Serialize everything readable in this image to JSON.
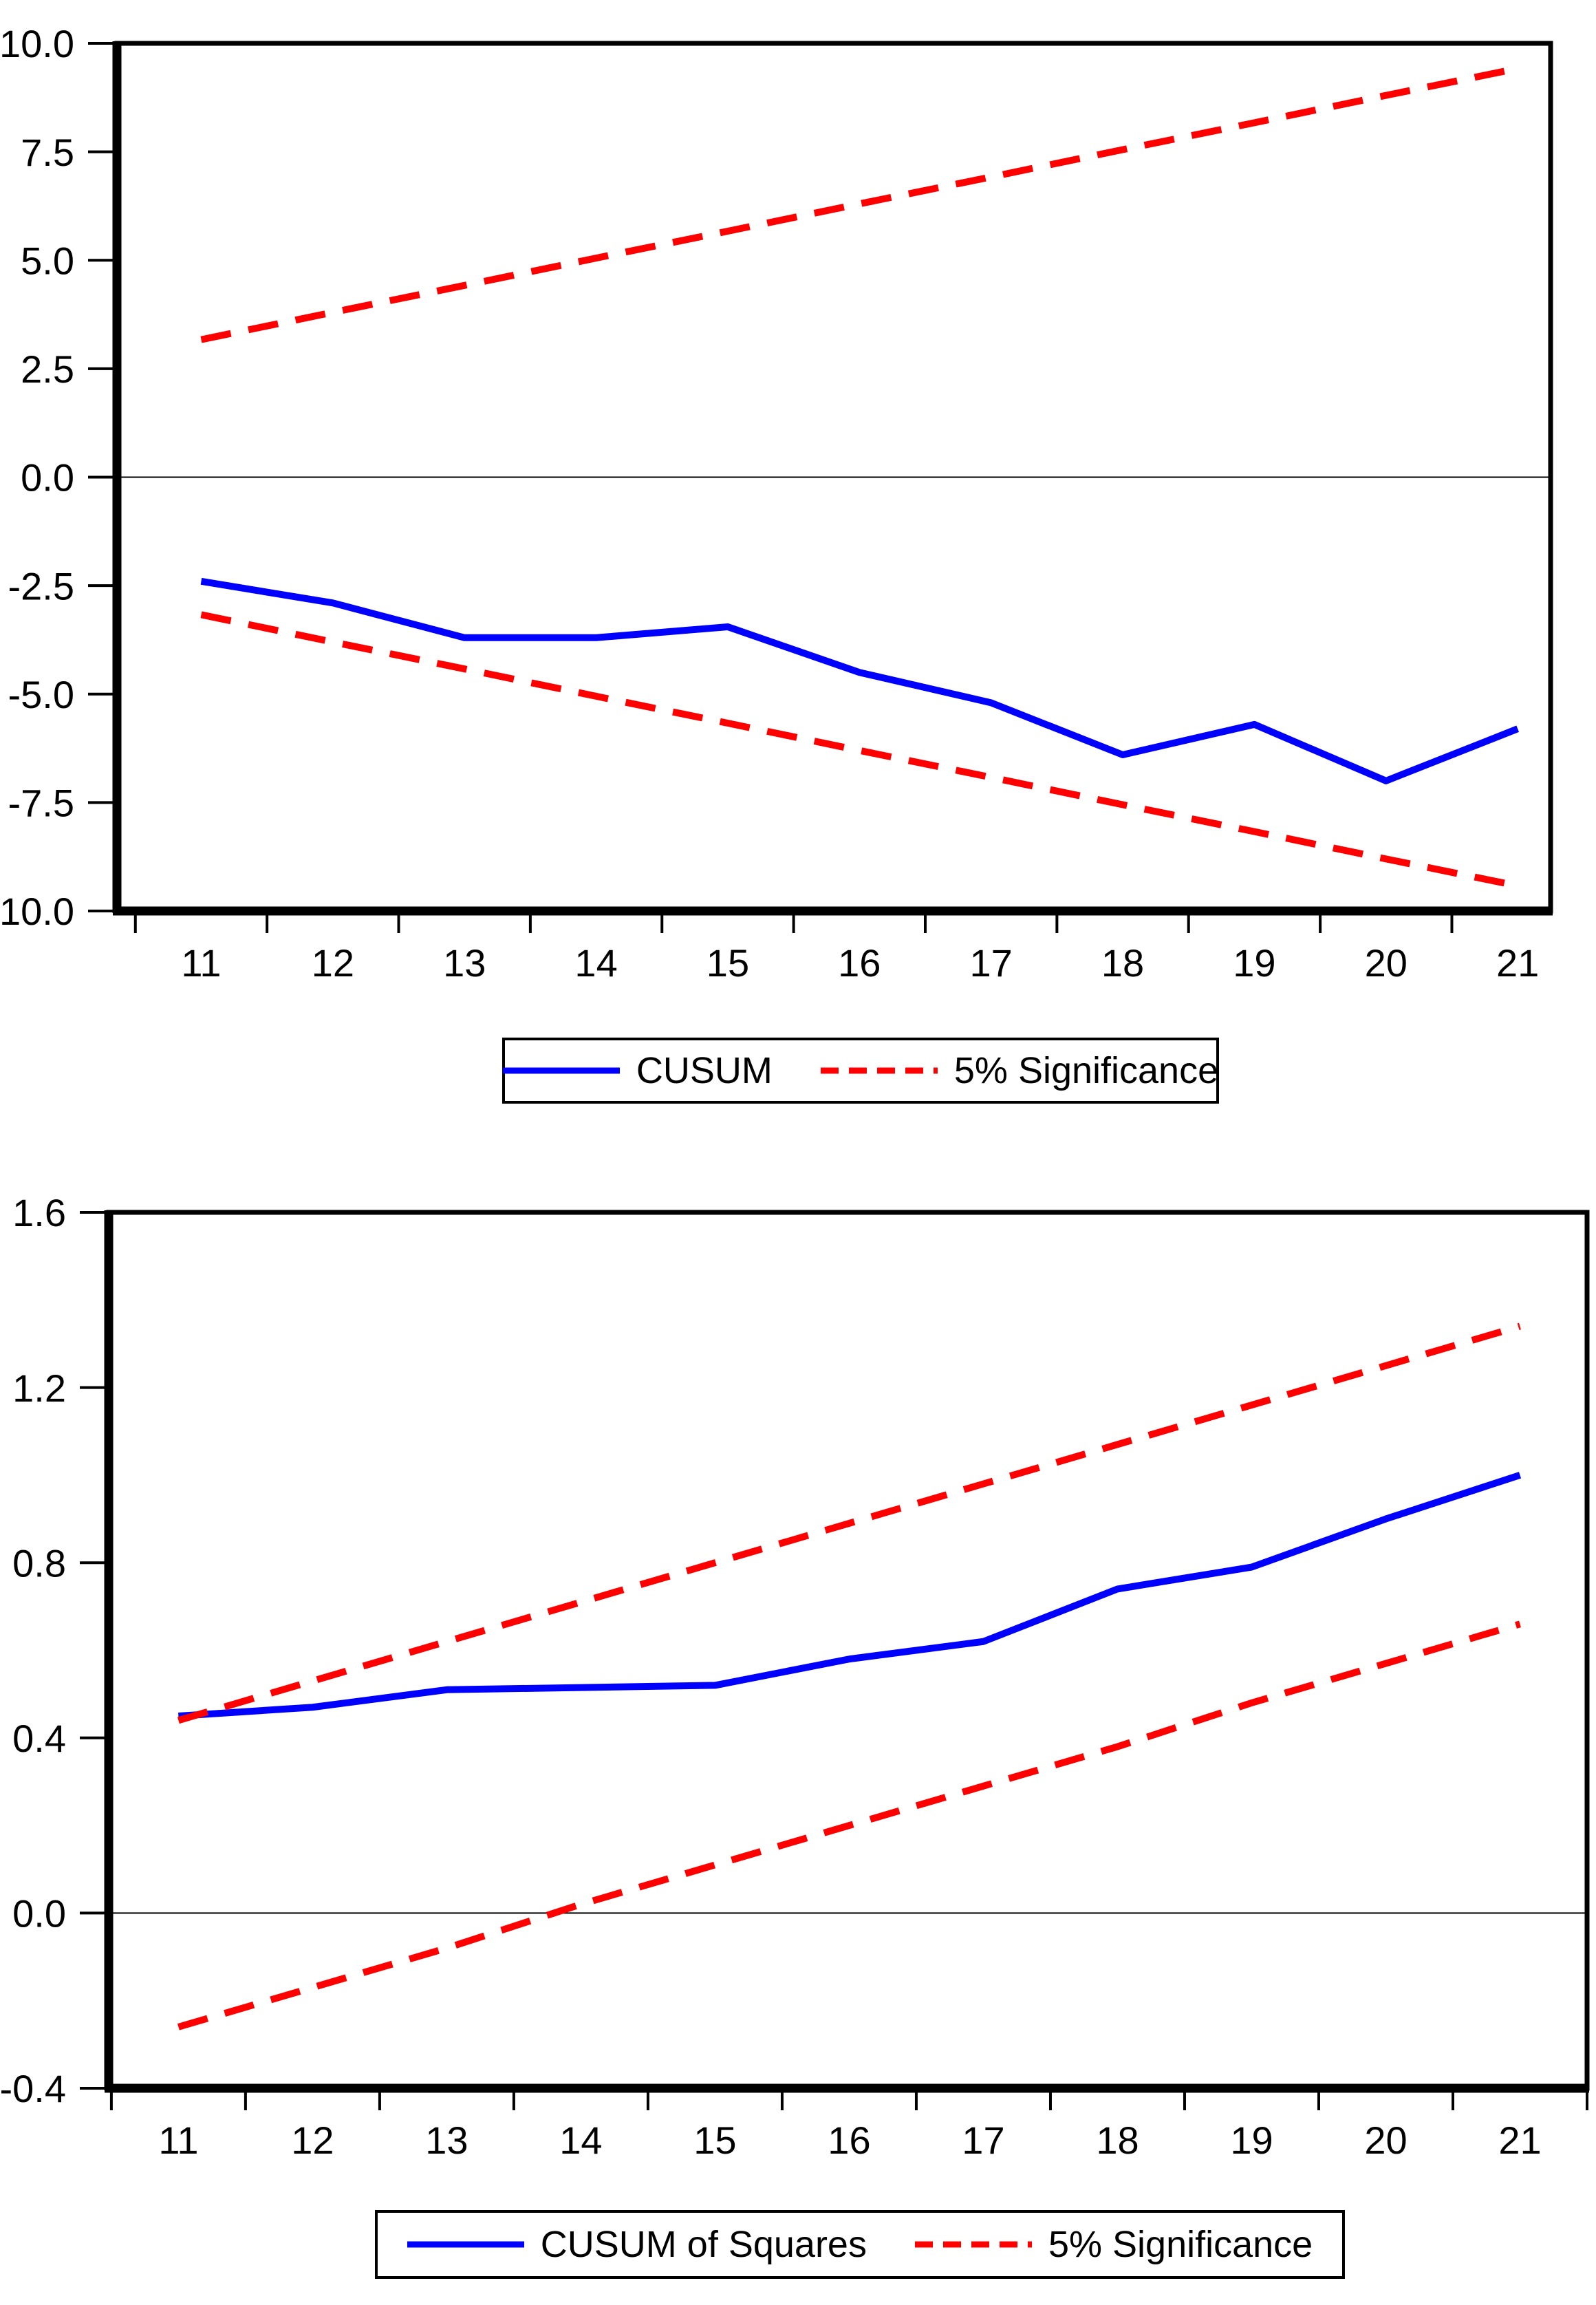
{
  "page": {
    "background": "#ffffff",
    "axis_color": "#000000",
    "cusum_color": "#0000FF",
    "significance_color": "#FF0000"
  },
  "chart_data": [
    {
      "type": "line",
      "title": "",
      "xlabel": "",
      "ylabel": "",
      "x": [
        11,
        12,
        13,
        14,
        15,
        16,
        17,
        18,
        19,
        20,
        21
      ],
      "xtick_labels": [
        "11",
        "12",
        "13",
        "14",
        "15",
        "16",
        "17",
        "18",
        "19",
        "20",
        "21"
      ],
      "ylim": [
        -10.0,
        10.0
      ],
      "yticks": [
        10.0,
        7.5,
        5.0,
        2.5,
        0.0,
        -2.5,
        -5.0,
        -7.5,
        -10.0
      ],
      "ytick_labels": [
        "10.0",
        "7.5",
        "5.0",
        "2.5",
        "0.0",
        "-2.5",
        "-5.0",
        "-7.5",
        "-10.0"
      ],
      "grid": false,
      "zero_line": true,
      "legend_position": "bottom",
      "legend": [
        "CUSUM",
        "5% Significance"
      ],
      "series": [
        {
          "name": "CUSUM",
          "color": "#0000FF",
          "style": "solid",
          "values": [
            -2.4,
            -2.9,
            -3.7,
            -3.7,
            -3.45,
            -4.5,
            -5.2,
            -6.4,
            -5.7,
            -7.0,
            -5.8
          ]
        },
        {
          "name": "5% Significance upper",
          "color": "#FF0000",
          "style": "dashed",
          "values": [
            3.17,
            3.8,
            4.42,
            5.05,
            5.67,
            6.3,
            6.92,
            7.55,
            8.17,
            8.8,
            9.42
          ]
        },
        {
          "name": "5% Significance lower",
          "color": "#FF0000",
          "style": "dashed",
          "values": [
            -3.17,
            -3.8,
            -4.42,
            -5.05,
            -5.67,
            -6.3,
            -6.92,
            -7.55,
            -8.17,
            -8.8,
            -9.42
          ]
        }
      ]
    },
    {
      "type": "line",
      "title": "",
      "xlabel": "",
      "ylabel": "",
      "x": [
        11,
        12,
        13,
        14,
        15,
        16,
        17,
        18,
        19,
        20,
        21
      ],
      "xtick_labels": [
        "11",
        "12",
        "13",
        "14",
        "15",
        "16",
        "17",
        "18",
        "19",
        "20",
        "21"
      ],
      "ylim": [
        -0.4,
        1.6
      ],
      "yticks": [
        1.6,
        1.2,
        0.8,
        0.4,
        0.0,
        -0.4
      ],
      "ytick_labels": [
        "1.6",
        "1.2",
        "0.8",
        "0.4",
        "0.0",
        "-0.4"
      ],
      "grid": false,
      "zero_line": true,
      "legend_position": "bottom",
      "legend": [
        "CUSUM of Squares",
        "5% Significance"
      ],
      "series": [
        {
          "name": "CUSUM of Squares",
          "color": "#0000FF",
          "style": "solid",
          "values": [
            0.45,
            0.47,
            0.51,
            0.515,
            0.52,
            0.58,
            0.62,
            0.74,
            0.79,
            0.9,
            1.0
          ]
        },
        {
          "name": "5% Significance upper",
          "color": "#FF0000",
          "style": "dashed",
          "values": [
            0.44,
            0.53,
            0.62,
            0.71,
            0.8,
            0.89,
            0.98,
            1.07,
            1.16,
            1.25,
            1.34
          ]
        },
        {
          "name": "5% Significance lower",
          "color": "#FF0000",
          "style": "dashed",
          "values": [
            -0.26,
            -0.17,
            -0.08,
            0.02,
            0.11,
            0.2,
            0.29,
            0.38,
            0.48,
            0.57,
            0.66
          ]
        }
      ]
    }
  ]
}
